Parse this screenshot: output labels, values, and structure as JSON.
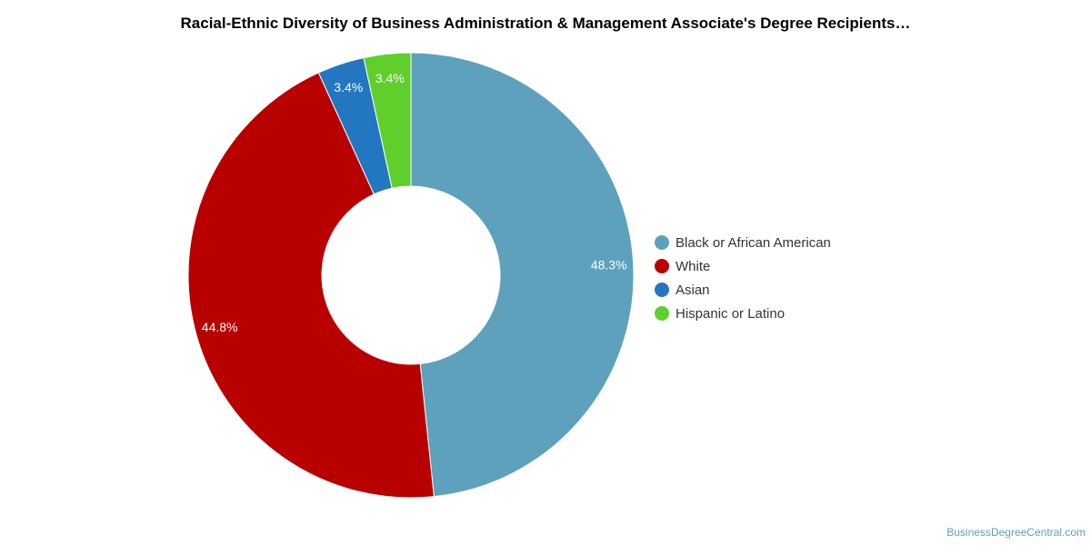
{
  "title": "Racial-Ethnic Diversity of Business Administration & Management Associate's Degree Recipients…",
  "credit": "BusinessDegreeCentral.com",
  "chart_data": {
    "type": "pie",
    "variant": "donut",
    "title": "Racial-Ethnic Diversity of Business Administration & Management Associate's Degree Recipients…",
    "legend_position": "right",
    "categories": [
      "Black or African American",
      "White",
      "Asian",
      "Hispanic or Latino"
    ],
    "values": [
      48.3,
      44.8,
      3.4,
      3.4
    ],
    "labels": [
      "48.3%",
      "44.8%",
      "3.4%",
      "3.4%"
    ],
    "colors": [
      "#5ea1bd",
      "#b90000",
      "#2277c0",
      "#5fcf2b"
    ]
  },
  "legend": [
    {
      "label": "Black or African American",
      "color": "#5ea1bd"
    },
    {
      "label": "White",
      "color": "#b90000"
    },
    {
      "label": "Asian",
      "color": "#2277c0"
    },
    {
      "label": "Hispanic or Latino",
      "color": "#5fcf2b"
    }
  ]
}
